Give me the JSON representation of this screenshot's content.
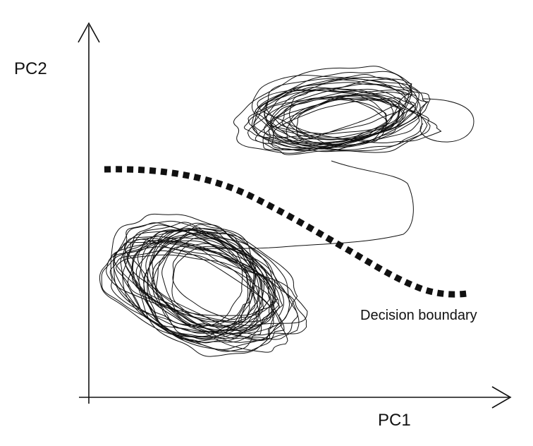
{
  "diagram": {
    "y_axis_label": "PC2",
    "x_axis_label": "PC1",
    "boundary_label": "Decision boundary"
  },
  "colors": {
    "ink": "#111111",
    "background": "#ffffff"
  }
}
